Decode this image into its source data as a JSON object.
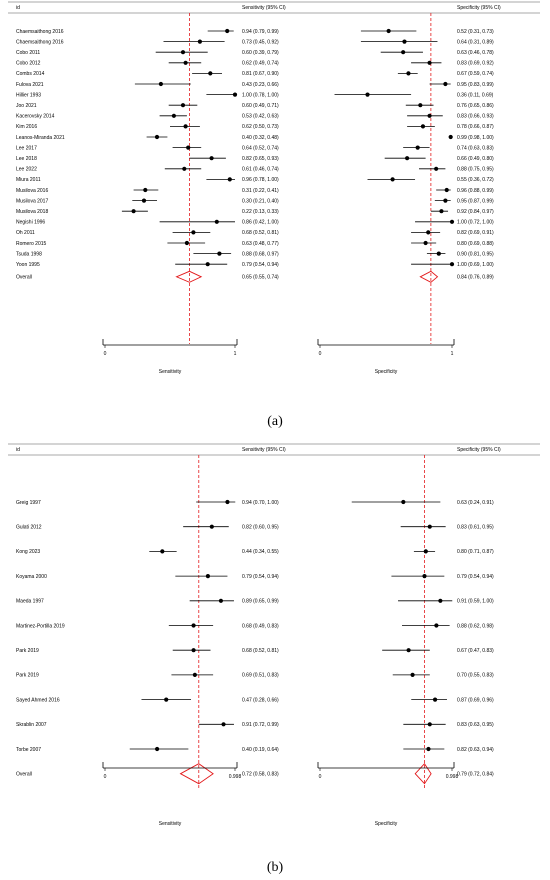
{
  "chart_data": [
    {
      "type": "forest",
      "panel_label": "(a)",
      "headers": {
        "id": "id",
        "sens": "Sensitivity (95% CI)",
        "spec": "Specificity (95% CI)"
      },
      "studies": [
        {
          "id": "Chaemsaithong 2016",
          "sens": [
            0.94,
            0.79,
            0.99
          ],
          "sens_text": "0.94 (0.79, 0.99)",
          "spec": [
            0.52,
            0.31,
            0.73
          ],
          "spec_text": "0.52 (0.31, 0.73)"
        },
        {
          "id": "Chaemsaithong 2016",
          "sens": [
            0.73,
            0.45,
            0.92
          ],
          "sens_text": "0.73 (0.45, 0.92)",
          "spec": [
            0.64,
            0.31,
            0.89
          ],
          "spec_text": "0.64 (0.31, 0.89)"
        },
        {
          "id": "Cobo 2011",
          "sens": [
            0.6,
            0.39,
            0.79
          ],
          "sens_text": "0.60 (0.39, 0.79)",
          "spec": [
            0.63,
            0.46,
            0.78
          ],
          "spec_text": "0.63 (0.46, 0.78)"
        },
        {
          "id": "Cobo 2012",
          "sens": [
            0.62,
            0.49,
            0.74
          ],
          "sens_text": "0.62 (0.49, 0.74)",
          "spec": [
            0.83,
            0.69,
            0.92
          ],
          "spec_text": "0.83 (0.69, 0.92)"
        },
        {
          "id": "Combs 2014",
          "sens": [
            0.81,
            0.67,
            0.9
          ],
          "sens_text": "0.81 (0.67, 0.90)",
          "spec": [
            0.67,
            0.59,
            0.74
          ],
          "spec_text": "0.67 (0.59, 0.74)"
        },
        {
          "id": "Fulova 2021",
          "sens": [
            0.43,
            0.23,
            0.66
          ],
          "sens_text": "0.43 (0.23, 0.66)",
          "spec": [
            0.95,
            0.83,
            0.99
          ],
          "spec_text": "0.95 (0.83, 0.99)"
        },
        {
          "id": "Hillier 1993",
          "sens": [
            1.0,
            0.78,
            1.0
          ],
          "sens_text": "1.00 (0.78, 1.00)",
          "spec": [
            0.36,
            0.11,
            0.69
          ],
          "spec_text": "0.36 (0.11, 0.69)"
        },
        {
          "id": "Joo 2021",
          "sens": [
            0.6,
            0.49,
            0.71
          ],
          "sens_text": "0.60 (0.49, 0.71)",
          "spec": [
            0.76,
            0.65,
            0.86
          ],
          "spec_text": "0.76 (0.65, 0.86)"
        },
        {
          "id": "Kacerovsky 2014",
          "sens": [
            0.53,
            0.42,
            0.63
          ],
          "sens_text": "0.53 (0.42, 0.63)",
          "spec": [
            0.83,
            0.66,
            0.93
          ],
          "spec_text": "0.83 (0.66, 0.93)"
        },
        {
          "id": "Kim 2016",
          "sens": [
            0.62,
            0.5,
            0.73
          ],
          "sens_text": "0.62 (0.50, 0.73)",
          "spec": [
            0.78,
            0.66,
            0.87
          ],
          "spec_text": "0.78 (0.66, 0.87)"
        },
        {
          "id": "Leanos-Miranda 2021",
          "sens": [
            0.4,
            0.32,
            0.48
          ],
          "sens_text": "0.40 (0.32, 0.48)",
          "spec": [
            0.99,
            0.98,
            1.0
          ],
          "spec_text": "0.99 (0.98, 1.00)"
        },
        {
          "id": "Lee 2017",
          "sens": [
            0.64,
            0.52,
            0.74
          ],
          "sens_text": "0.64 (0.52, 0.74)",
          "spec": [
            0.74,
            0.63,
            0.83
          ],
          "spec_text": "0.74 (0.63, 0.83)"
        },
        {
          "id": "Lee 2018",
          "sens": [
            0.82,
            0.65,
            0.93
          ],
          "sens_text": "0.82 (0.65, 0.93)",
          "spec": [
            0.66,
            0.49,
            0.8
          ],
          "spec_text": "0.66 (0.49, 0.80)"
        },
        {
          "id": "Lee 2022",
          "sens": [
            0.61,
            0.46,
            0.74
          ],
          "sens_text": "0.61 (0.46, 0.74)",
          "spec": [
            0.88,
            0.75,
            0.95
          ],
          "spec_text": "0.88 (0.75, 0.95)"
        },
        {
          "id": "Miura 2011",
          "sens": [
            0.96,
            0.78,
            1.0
          ],
          "sens_text": "0.96 (0.78, 1.00)",
          "spec": [
            0.55,
            0.36,
            0.72
          ],
          "spec_text": "0.55 (0.36, 0.72)"
        },
        {
          "id": "Musilova 2016",
          "sens": [
            0.31,
            0.22,
            0.41
          ],
          "sens_text": "0.31 (0.22, 0.41)",
          "spec": [
            0.96,
            0.88,
            0.99
          ],
          "spec_text": "0.96 (0.88, 0.99)"
        },
        {
          "id": "Musilova 2017",
          "sens": [
            0.3,
            0.21,
            0.4
          ],
          "sens_text": "0.30 (0.21, 0.40)",
          "spec": [
            0.95,
            0.87,
            0.99
          ],
          "spec_text": "0.95 (0.87, 0.99)"
        },
        {
          "id": "Musilova 2018",
          "sens": [
            0.22,
            0.13,
            0.33
          ],
          "sens_text": "0.22 (0.13, 0.33)",
          "spec": [
            0.92,
            0.84,
            0.97
          ],
          "spec_text": "0.92 (0.84, 0.97)"
        },
        {
          "id": "Negishi 1996",
          "sens": [
            0.86,
            0.42,
            1.0
          ],
          "sens_text": "0.86 (0.42, 1.00)",
          "spec": [
            1.0,
            0.72,
            1.0
          ],
          "spec_text": "1.00 (0.72, 1.00)"
        },
        {
          "id": "Oh 2011",
          "sens": [
            0.68,
            0.52,
            0.81
          ],
          "sens_text": "0.68 (0.52, 0.81)",
          "spec": [
            0.82,
            0.69,
            0.91
          ],
          "spec_text": "0.82 (0.69, 0.91)"
        },
        {
          "id": "Romero 2015",
          "sens": [
            0.63,
            0.48,
            0.77
          ],
          "sens_text": "0.63 (0.48, 0.77)",
          "spec": [
            0.8,
            0.69,
            0.88
          ],
          "spec_text": "0.80 (0.69, 0.88)"
        },
        {
          "id": "Tsuda 1998",
          "sens": [
            0.88,
            0.68,
            0.97
          ],
          "sens_text": "0.88 (0.68, 0.97)",
          "spec": [
            0.9,
            0.81,
            0.95
          ],
          "spec_text": "0.90 (0.81, 0.95)"
        },
        {
          "id": "Yoon 1995",
          "sens": [
            0.79,
            0.54,
            0.94
          ],
          "sens_text": "0.79 (0.54, 0.94)",
          "spec": [
            1.0,
            0.69,
            1.0
          ],
          "spec_text": "1.00 (0.69, 1.00)"
        }
      ],
      "overall": {
        "id": "Overall",
        "sens": [
          0.65,
          0.55,
          0.74
        ],
        "sens_text": "0.65 (0.55, 0.74)",
        "spec": [
          0.84,
          0.76,
          0.89
        ],
        "spec_text": "0.84 (0.76, 0.89)"
      },
      "sens_axis": {
        "ticks": [
          0,
          1
        ],
        "tick_labels": [
          "0",
          "1"
        ],
        "label": "Sensitivity",
        "range": [
          0,
          1
        ]
      },
      "spec_axis": {
        "ticks": [
          0,
          1
        ],
        "tick_labels": [
          "0",
          "1"
        ],
        "label": "Specificity",
        "range": [
          0,
          1
        ]
      },
      "colors": {
        "point": "#000000",
        "ci": "#000000",
        "summary": "#e31a1c",
        "ref_line": "#e31a1c"
      }
    },
    {
      "type": "forest",
      "panel_label": "(b)",
      "headers": {
        "id": "id",
        "sens": "Sensitivity (95% CI)",
        "spec": "Specificity (95% CI)"
      },
      "studies": [
        {
          "id": "Greig 1997",
          "sens": [
            0.94,
            0.7,
            1.0
          ],
          "sens_text": "0.94 (0.70, 1.00)",
          "spec": [
            0.63,
            0.24,
            0.91
          ],
          "spec_text": "0.63 (0.24, 0.91)"
        },
        {
          "id": "Gulati 2012",
          "sens": [
            0.82,
            0.6,
            0.95
          ],
          "sens_text": "0.82 (0.60, 0.95)",
          "spec": [
            0.83,
            0.61,
            0.95
          ],
          "spec_text": "0.83 (0.61, 0.95)"
        },
        {
          "id": "Kong  2023",
          "sens": [
            0.44,
            0.34,
            0.55
          ],
          "sens_text": "0.44 (0.34, 0.55)",
          "spec": [
            0.8,
            0.71,
            0.87
          ],
          "spec_text": "0.80 (0.71, 0.87)"
        },
        {
          "id": "Koyama 2000",
          "sens": [
            0.79,
            0.54,
            0.94
          ],
          "sens_text": "0.79 (0.54, 0.94)",
          "spec": [
            0.79,
            0.54,
            0.94
          ],
          "spec_text": "0.79 (0.54, 0.94)"
        },
        {
          "id": "Maeda  1997",
          "sens": [
            0.89,
            0.65,
            0.99
          ],
          "sens_text": "0.89 (0.65, 0.99)",
          "spec": [
            0.91,
            0.59,
            1.0
          ],
          "spec_text": "0.91 (0.59, 1.00)"
        },
        {
          "id": "Martinez-Portilla 2019",
          "sens": [
            0.68,
            0.49,
            0.83
          ],
          "sens_text": "0.68 (0.49, 0.83)",
          "spec": [
            0.88,
            0.62,
            0.98
          ],
          "spec_text": "0.88 (0.62, 0.98)"
        },
        {
          "id": "Park 2019",
          "sens": [
            0.68,
            0.52,
            0.81
          ],
          "sens_text": "0.68 (0.52, 0.81)",
          "spec": [
            0.67,
            0.47,
            0.83
          ],
          "spec_text": "0.67 (0.47, 0.83)"
        },
        {
          "id": "Park 2019",
          "sens": [
            0.69,
            0.51,
            0.83
          ],
          "sens_text": "0.69 (0.51, 0.83)",
          "spec": [
            0.7,
            0.55,
            0.83
          ],
          "spec_text": "0.70 (0.55, 0.83)"
        },
        {
          "id": "Sayed Ahmed 2016",
          "sens": [
            0.47,
            0.28,
            0.66
          ],
          "sens_text": "0.47 (0.28, 0.66)",
          "spec": [
            0.87,
            0.69,
            0.96
          ],
          "spec_text": "0.87 (0.69, 0.96)"
        },
        {
          "id": "Skrablin 2007",
          "sens": [
            0.91,
            0.72,
            0.99
          ],
          "sens_text": "0.91 (0.72, 0.99)",
          "spec": [
            0.83,
            0.63,
            0.95
          ],
          "spec_text": "0.83 (0.63, 0.95)"
        },
        {
          "id": "Torbe 2007",
          "sens": [
            0.4,
            0.19,
            0.64
          ],
          "sens_text": "0.40 (0.19, 0.64)",
          "spec": [
            0.82,
            0.63,
            0.94
          ],
          "spec_text": "0.82 (0.63, 0.94)"
        }
      ],
      "overall": {
        "id": "Overall",
        "sens": [
          0.72,
          0.58,
          0.83
        ],
        "sens_text": "0.72 (0.58, 0.83)",
        "spec": [
          0.79,
          0.72,
          0.84
        ],
        "spec_text": "0.79 (0.72, 0.84)"
      },
      "sens_axis": {
        "ticks": [
          0,
          0.998
        ],
        "tick_labels": [
          "0",
          "0.998"
        ],
        "label": "Sensitivity",
        "range": [
          0,
          0.998
        ]
      },
      "spec_axis": {
        "ticks": [
          0,
          0.998
        ],
        "tick_labels": [
          "0",
          "0.998"
        ],
        "label": "Specificity",
        "range": [
          0,
          0.998
        ]
      },
      "colors": {
        "point": "#000000",
        "ci": "#000000",
        "summary": "#e31a1c",
        "ref_line": "#e31a1c"
      }
    }
  ]
}
